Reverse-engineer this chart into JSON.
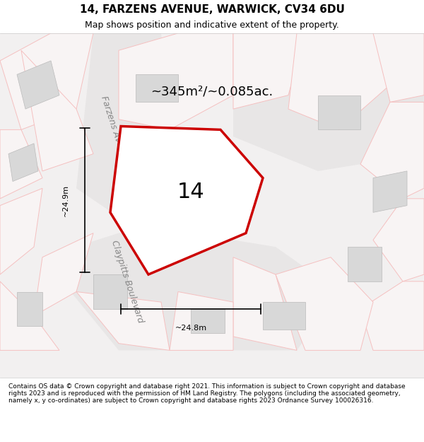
{
  "title": "14, FARZENS AVENUE, WARWICK, CV34 6DU",
  "subtitle": "Map shows position and indicative extent of the property.",
  "footer": "Contains OS data © Crown copyright and database right 2021. This information is subject to Crown copyright and database rights 2023 and is reproduced with the permission of HM Land Registry. The polygons (including the associated geometry, namely x, y co-ordinates) are subject to Crown copyright and database rights 2023 Ordnance Survey 100026316.",
  "area_label": "~345m²/~0.085ac.",
  "property_number": "14",
  "dim_height": "~24.9m",
  "dim_width": "~24.8m",
  "bg_color": "#f0eeee",
  "map_bg": "#f2f0f0",
  "road_color": "#d9d9d9",
  "plot_line_color": "#cc0000",
  "plot_fill_color": "#ffffff",
  "other_plot_color": "#f5c0c0",
  "building_color": "#d8d8d8",
  "road_label_color": "#888888",
  "title_fontsize": 11,
  "subtitle_fontsize": 9,
  "footer_fontsize": 6.5,
  "annotation_fontsize": 13,
  "property_num_fontsize": 22,
  "road_label_fontsize": 9
}
